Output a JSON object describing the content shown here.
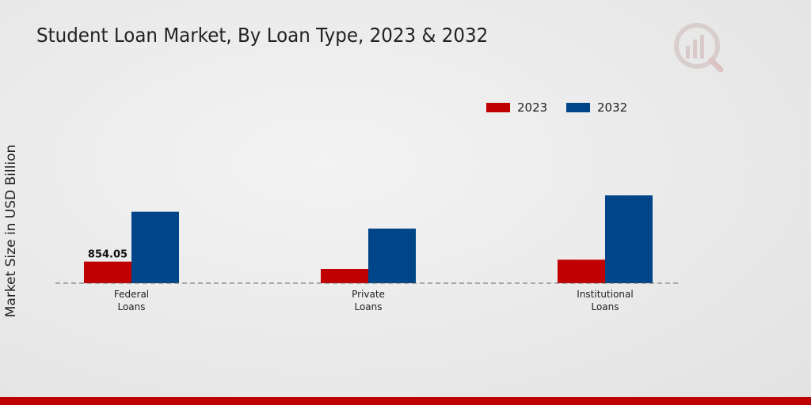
{
  "chart_data": {
    "type": "bar",
    "title": "Student Loan Market, By Loan Type, 2023 & 2032",
    "xlabel": "",
    "ylabel": "Market Size in USD Billion",
    "categories": [
      [
        "Federal",
        "Loans"
      ],
      [
        "Private",
        "Loans"
      ],
      [
        "Institutional",
        "Loans"
      ]
    ],
    "series": [
      {
        "name": "2023",
        "color": "#c00000",
        "values": [
          854.05,
          563,
          929
        ]
      },
      {
        "name": "2032",
        "color": "#004587",
        "values": [
          2826,
          2159,
          3473
        ]
      }
    ],
    "data_labels": [
      {
        "series": 0,
        "index": 0,
        "text": "854.05"
      }
    ],
    "legend": "top-right",
    "grid": false,
    "baseline_style": "dashed"
  },
  "footer_bar_color": "#c00000",
  "logo": "market-research-logo"
}
